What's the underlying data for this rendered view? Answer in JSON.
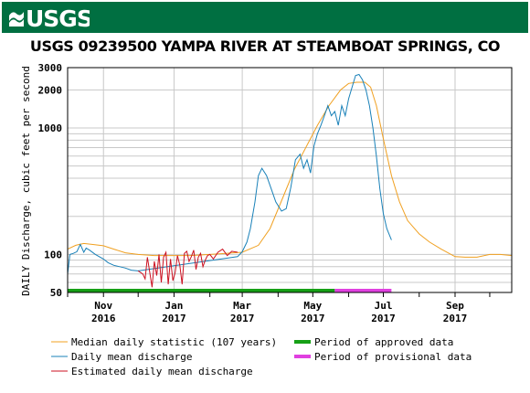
{
  "header": {
    "logo_text": "USGS",
    "bg_color": "#006f41"
  },
  "chart_data": {
    "type": "line",
    "title": "USGS 09239500 YAMPA RIVER AT STEAMBOAT SPRINGS, CO",
    "ylabel": "DAILY Discharge, cubic feet per second",
    "xlabel": "",
    "y_scale": "log",
    "ylim": [
      50,
      3000
    ],
    "xlim": [
      "2016-10-01",
      "2017-10-20"
    ],
    "y_ticks": [
      {
        "value": 50,
        "label": "50"
      },
      {
        "value": 100,
        "label": "100"
      },
      {
        "value": 1000,
        "label": "1000"
      },
      {
        "value": 2000,
        "label": "2000"
      },
      {
        "value": 3000,
        "label": "3000"
      }
    ],
    "x_ticks": [
      {
        "date": "2016-11-01",
        "label1": "Nov",
        "label2": "2016"
      },
      {
        "date": "2017-01-01",
        "label1": "Jan",
        "label2": "2017"
      },
      {
        "date": "2017-03-01",
        "label1": "Mar",
        "label2": "2017"
      },
      {
        "date": "2017-05-01",
        "label1": "May",
        "label2": "2017"
      },
      {
        "date": "2017-07-01",
        "label1": "Jul",
        "label2": "2017"
      },
      {
        "date": "2017-09-01",
        "label1": "Sep",
        "label2": "2017"
      }
    ],
    "grid": true,
    "legend_position": "bottom",
    "series": [
      {
        "name": "Median daily statistic (107 years)",
        "color": "#f0a020",
        "x": [
          "2016-10-01",
          "2016-10-08",
          "2016-10-15",
          "2016-10-22",
          "2016-11-01",
          "2016-11-10",
          "2016-11-20",
          "2016-12-01",
          "2016-12-15",
          "2017-01-01",
          "2017-01-15",
          "2017-02-01",
          "2017-02-15",
          "2017-03-01",
          "2017-03-15",
          "2017-03-25",
          "2017-04-05",
          "2017-04-15",
          "2017-04-25",
          "2017-05-05",
          "2017-05-15",
          "2017-05-25",
          "2017-06-01",
          "2017-06-08",
          "2017-06-15",
          "2017-06-20",
          "2017-06-25",
          "2017-07-01",
          "2017-07-08",
          "2017-07-15",
          "2017-07-22",
          "2017-08-01",
          "2017-08-10",
          "2017-08-20",
          "2017-09-01",
          "2017-09-10",
          "2017-09-20",
          "2017-10-01",
          "2017-10-10",
          "2017-10-20"
        ],
        "y": [
          110,
          118,
          122,
          120,
          117,
          110,
          103,
          100,
          98,
          98,
          98,
          100,
          102,
          104,
          118,
          160,
          280,
          470,
          700,
          1050,
          1500,
          2000,
          2250,
          2300,
          2300,
          2100,
          1500,
          820,
          420,
          260,
          185,
          145,
          125,
          110,
          96,
          95,
          95,
          100,
          100,
          98
        ]
      },
      {
        "name": "Daily mean discharge",
        "color": "#1880b8",
        "x": [
          "2016-10-01",
          "2016-10-03",
          "2016-10-06",
          "2016-10-09",
          "2016-10-12",
          "2016-10-15",
          "2016-10-17",
          "2016-10-20",
          "2016-10-25",
          "2016-11-01",
          "2016-11-05",
          "2016-11-10",
          "2016-11-15",
          "2016-11-20",
          "2016-11-25",
          "2016-12-01",
          "2017-02-25",
          "2017-03-01",
          "2017-03-05",
          "2017-03-08",
          "2017-03-12",
          "2017-03-15",
          "2017-03-18",
          "2017-03-22",
          "2017-03-26",
          "2017-03-30",
          "2017-04-04",
          "2017-04-08",
          "2017-04-12",
          "2017-04-16",
          "2017-04-20",
          "2017-04-23",
          "2017-04-26",
          "2017-04-29",
          "2017-05-02",
          "2017-05-05",
          "2017-05-08",
          "2017-05-11",
          "2017-05-14",
          "2017-05-17",
          "2017-05-20",
          "2017-05-23",
          "2017-05-26",
          "2017-05-29",
          "2017-06-01",
          "2017-06-04",
          "2017-06-07",
          "2017-06-10",
          "2017-06-13",
          "2017-06-16",
          "2017-06-19",
          "2017-06-22",
          "2017-06-25",
          "2017-06-28",
          "2017-07-01",
          "2017-07-04",
          "2017-07-08"
        ],
        "y": [
          70,
          100,
          102,
          105,
          120,
          104,
          112,
          108,
          100,
          92,
          86,
          82,
          80,
          78,
          75,
          74,
          96,
          105,
          125,
          160,
          260,
          420,
          480,
          420,
          330,
          260,
          220,
          230,
          340,
          560,
          620,
          480,
          560,
          440,
          720,
          900,
          1050,
          1250,
          1500,
          1250,
          1350,
          1050,
          1500,
          1250,
          1700,
          2100,
          2600,
          2650,
          2400,
          2000,
          1500,
          1000,
          600,
          330,
          210,
          160,
          130
        ]
      },
      {
        "name": "Estimated daily mean discharge",
        "color": "#cc1020",
        "x": [
          "2016-12-01",
          "2016-12-03",
          "2016-12-05",
          "2016-12-07",
          "2016-12-09",
          "2016-12-11",
          "2016-12-13",
          "2016-12-15",
          "2016-12-17",
          "2016-12-19",
          "2016-12-21",
          "2016-12-23",
          "2016-12-25",
          "2016-12-27",
          "2016-12-29",
          "2016-12-31",
          "2017-01-02",
          "2017-01-04",
          "2017-01-06",
          "2017-01-08",
          "2017-01-10",
          "2017-01-12",
          "2017-01-14",
          "2017-01-16",
          "2017-01-18",
          "2017-01-20",
          "2017-01-22",
          "2017-01-24",
          "2017-01-26",
          "2017-01-28",
          "2017-01-30",
          "2017-02-01",
          "2017-02-04",
          "2017-02-08",
          "2017-02-12",
          "2017-02-16",
          "2017-02-20",
          "2017-02-25"
        ],
        "y": [
          74,
          72,
          70,
          64,
          95,
          72,
          55,
          88,
          68,
          100,
          60,
          95,
          104,
          58,
          92,
          62,
          72,
          98,
          82,
          58,
          102,
          106,
          88,
          96,
          108,
          76,
          95,
          102,
          80,
          90,
          98,
          100,
          92,
          104,
          110,
          98,
          106,
          104
        ]
      }
    ],
    "data_periods": [
      {
        "name": "Period of approved data",
        "color": "#16a016",
        "start": "2016-10-01",
        "end": "2017-05-20"
      },
      {
        "name": "Period of provisional data",
        "color": "#e040e0",
        "start": "2017-05-20",
        "end": "2017-07-08"
      }
    ]
  }
}
